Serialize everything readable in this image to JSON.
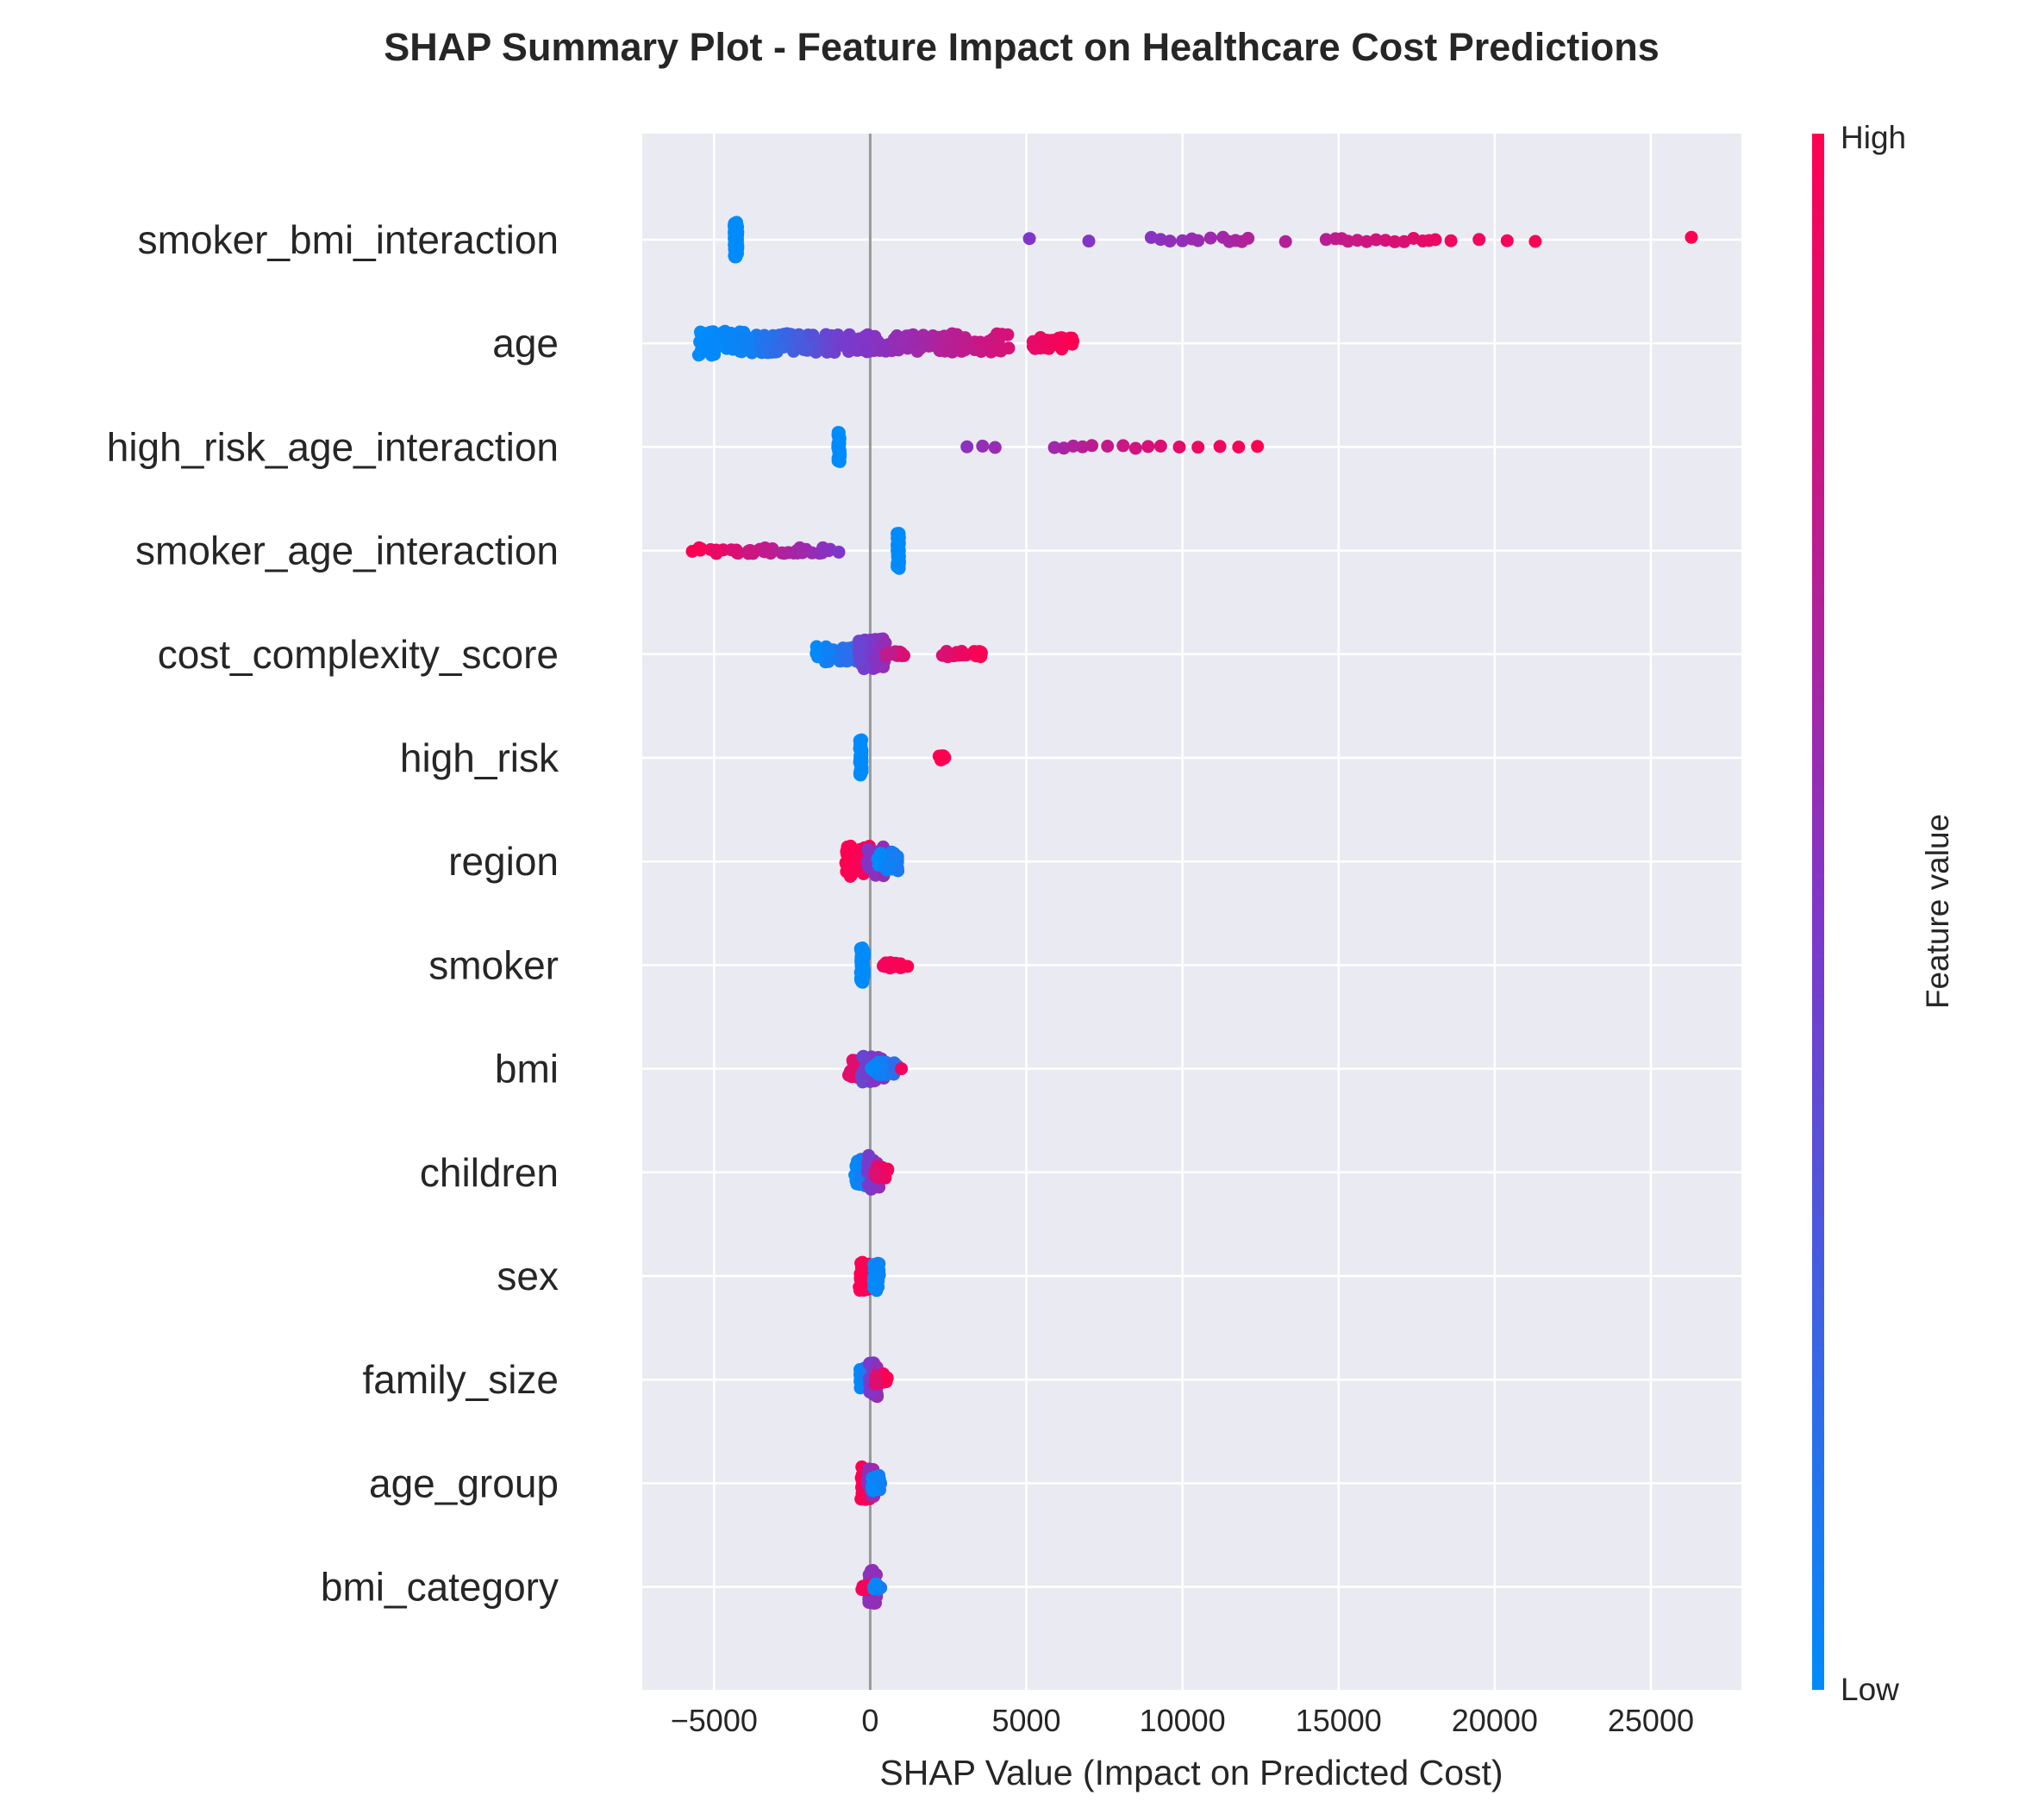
{
  "chart_data": {
    "type": "scatter",
    "title": "SHAP Summary Plot - Feature Impact on Healthcare Cost Predictions",
    "xlabel": "SHAP Value (Impact on Predicted Cost)",
    "ylabel": "",
    "xlim": [
      -7300,
      27900
    ],
    "xticks": [
      -5000,
      0,
      5000,
      10000,
      15000,
      20000,
      25000
    ],
    "xtick_labels": [
      "−5000",
      "0",
      "5000",
      "10000",
      "15000",
      "20000",
      "25000"
    ],
    "grid": true,
    "colorbar": {
      "title": "Feature value",
      "high_label": "High",
      "low_label": "Low",
      "low_color": "#008bfb",
      "mid_color": "#7f36c9",
      "high_color": "#ff0051"
    },
    "features": [
      {
        "name": "smoker_bmi_interaction",
        "clusters": [
          {
            "center": -4300,
            "jitter": 60,
            "count": 60,
            "spread": 0.37,
            "color": 0.0
          },
          {
            "values": [
              5100,
              7000,
              9000,
              9300,
              9600,
              10000,
              10300,
              10500,
              10900,
              11300,
              11500,
              11700,
              11900,
              12100,
              13300,
              14600,
              14900,
              15100,
              15300,
              15600,
              15900,
              16200,
              16500,
              16800,
              17100,
              17400,
              17700,
              17900,
              18100,
              18600,
              19500,
              20400,
              21300,
              26300
            ],
            "color_from": 0.5,
            "color_to": 1.0,
            "spread": 0.05
          }
        ]
      },
      {
        "name": "age",
        "clusters": [
          {
            "from": -5500,
            "to": -4000,
            "count": 80,
            "spread": 0.25,
            "color_from": 0.0,
            "color_to": 0.05
          },
          {
            "from": -4000,
            "to": -1000,
            "count": 90,
            "spread": 0.2,
            "color_from": 0.05,
            "color_to": 0.45
          },
          {
            "from": -1000,
            "to": 2500,
            "count": 90,
            "spread": 0.18,
            "color_from": 0.45,
            "color_to": 0.7
          },
          {
            "from": 2300,
            "to": 4500,
            "count": 50,
            "spread": 0.2,
            "color_from": 0.7,
            "color_to": 0.85
          },
          {
            "from": 5200,
            "to": 6500,
            "count": 50,
            "spread": 0.12,
            "color_from": 0.9,
            "color_to": 1.0
          }
        ]
      },
      {
        "name": "high_risk_age_interaction",
        "clusters": [
          {
            "center": -1000,
            "jitter": 40,
            "count": 40,
            "spread": 0.32,
            "color": 0.0
          },
          {
            "values": [
              3100,
              3600,
              4000,
              5900,
              6200,
              6500,
              6800,
              7100,
              7600,
              8100,
              8500,
              8900,
              9300,
              9900,
              10500,
              11200,
              11800,
              12400
            ],
            "color_from": 0.55,
            "color_to": 1.0,
            "spread": 0.03
          }
        ]
      },
      {
        "name": "smoker_age_interaction",
        "clusters": [
          {
            "from": -5700,
            "to": -1000,
            "count": 45,
            "spread": 0.06,
            "color_from": 1.0,
            "color_to": 0.5
          },
          {
            "center": 900,
            "jitter": 40,
            "count": 50,
            "spread": 0.37,
            "color": 0.0
          }
        ]
      },
      {
        "name": "cost_complexity_score",
        "clusters": [
          {
            "from": -1800,
            "to": -200,
            "count": 50,
            "spread": 0.16,
            "color_from": 0.0,
            "color_to": 0.25
          },
          {
            "from": -400,
            "to": 500,
            "count": 55,
            "spread": 0.32,
            "color_from": 0.4,
            "color_to": 0.6
          },
          {
            "from": 400,
            "to": 1200,
            "count": 15,
            "spread": 0.06,
            "color_from": 0.7,
            "color_to": 0.9
          },
          {
            "from": 2300,
            "to": 3600,
            "count": 25,
            "spread": 0.06,
            "color_from": 0.85,
            "color_to": 1.0
          }
        ]
      },
      {
        "name": "high_risk",
        "clusters": [
          {
            "center": -300,
            "jitter": 40,
            "count": 60,
            "spread": 0.37,
            "color": 0.0
          },
          {
            "center": 2300,
            "jitter": 120,
            "count": 12,
            "spread": 0.05,
            "color": 1.0
          }
        ]
      },
      {
        "name": "region",
        "clusters": [
          {
            "from": -800,
            "to": 0,
            "count": 60,
            "spread": 0.32,
            "color_from": 1.0,
            "color_to": 0.95
          },
          {
            "from": -100,
            "to": 500,
            "count": 35,
            "spread": 0.3,
            "color_from": 0.5,
            "color_to": 0.6
          },
          {
            "from": 200,
            "to": 900,
            "count": 35,
            "spread": 0.2,
            "color_from": 0.0,
            "color_to": 0.1
          }
        ]
      },
      {
        "name": "smoker",
        "clusters": [
          {
            "center": -250,
            "jitter": 60,
            "count": 60,
            "spread": 0.37,
            "color": 0.0
          },
          {
            "from": 400,
            "to": 1200,
            "count": 20,
            "spread": 0.06,
            "color_from": 0.95,
            "color_to": 1.0
          }
        ]
      },
      {
        "name": "bmi",
        "clusters": [
          {
            "from": -700,
            "to": 100,
            "count": 30,
            "spread": 0.18,
            "color_from": 0.9,
            "color_to": 0.8
          },
          {
            "from": -300,
            "to": 500,
            "count": 50,
            "spread": 0.28,
            "color_from": 0.4,
            "color_to": 0.6
          },
          {
            "from": 0,
            "to": 900,
            "count": 35,
            "spread": 0.14,
            "color_from": 0.0,
            "color_to": 0.2
          },
          {
            "values": [
              1000
            ],
            "color": 0.95,
            "spread": 0.0
          }
        ]
      },
      {
        "name": "children",
        "clusters": [
          {
            "from": -500,
            "to": 100,
            "count": 35,
            "spread": 0.28,
            "color_from": 0.0,
            "color_to": 0.25
          },
          {
            "from": -100,
            "to": 300,
            "count": 30,
            "spread": 0.35,
            "color_from": 0.45,
            "color_to": 0.6
          },
          {
            "from": 100,
            "to": 650,
            "count": 20,
            "spread": 0.12,
            "color_from": 0.85,
            "color_to": 1.0
          }
        ]
      },
      {
        "name": "sex",
        "clusters": [
          {
            "from": -350,
            "to": -50,
            "count": 45,
            "spread": 0.3,
            "color_from": 1.0,
            "color_to": 0.95
          },
          {
            "from": 100,
            "to": 300,
            "count": 45,
            "spread": 0.3,
            "color_from": 0.0,
            "color_to": 0.05
          }
        ]
      },
      {
        "name": "family_size",
        "clusters": [
          {
            "from": -350,
            "to": 100,
            "count": 40,
            "spread": 0.24,
            "color_from": 0.0,
            "color_to": 0.2
          },
          {
            "from": -50,
            "to": 250,
            "count": 30,
            "spread": 0.35,
            "color_from": 0.45,
            "color_to": 0.6
          },
          {
            "from": 100,
            "to": 550,
            "count": 20,
            "spread": 0.12,
            "color_from": 0.85,
            "color_to": 1.0
          }
        ]
      },
      {
        "name": "age_group",
        "clusters": [
          {
            "from": -300,
            "to": 0,
            "count": 30,
            "spread": 0.35,
            "color_from": 1.0,
            "color_to": 0.9
          },
          {
            "from": -100,
            "to": 150,
            "count": 25,
            "spread": 0.3,
            "color_from": 0.55,
            "color_to": 0.65
          },
          {
            "from": 50,
            "to": 350,
            "count": 30,
            "spread": 0.16,
            "color_from": 0.0,
            "color_to": 0.1
          }
        ]
      },
      {
        "name": "bmi_category",
        "clusters": [
          {
            "from": -50,
            "to": 200,
            "count": 60,
            "spread": 0.35,
            "color_from": 0.55,
            "color_to": 0.6
          },
          {
            "from": -300,
            "to": 0,
            "count": 12,
            "spread": 0.06,
            "color_from": 0.95,
            "color_to": 1.0
          },
          {
            "from": 100,
            "to": 350,
            "count": 12,
            "spread": 0.06,
            "color_from": 0.0,
            "color_to": 0.1
          }
        ]
      }
    ]
  }
}
